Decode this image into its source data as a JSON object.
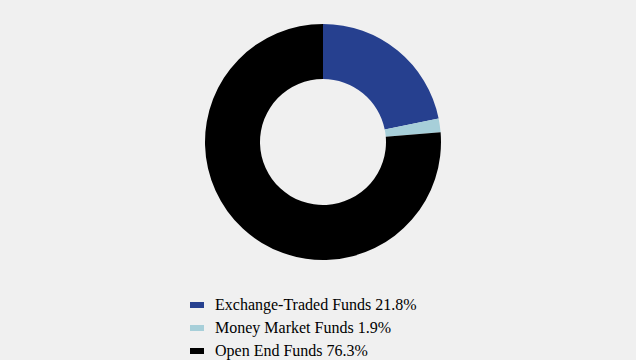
{
  "chart_data": {
    "type": "pie",
    "donut": true,
    "categories": [
      "Exchange-Traded Funds 21.8%",
      "Money Market Funds 1.9%",
      "Open End Funds 76.3%"
    ],
    "values": [
      21.8,
      1.9,
      76.3
    ],
    "colors": [
      "#26408f",
      "#a7cfd9",
      "#000000"
    ],
    "legend": "bottom"
  }
}
